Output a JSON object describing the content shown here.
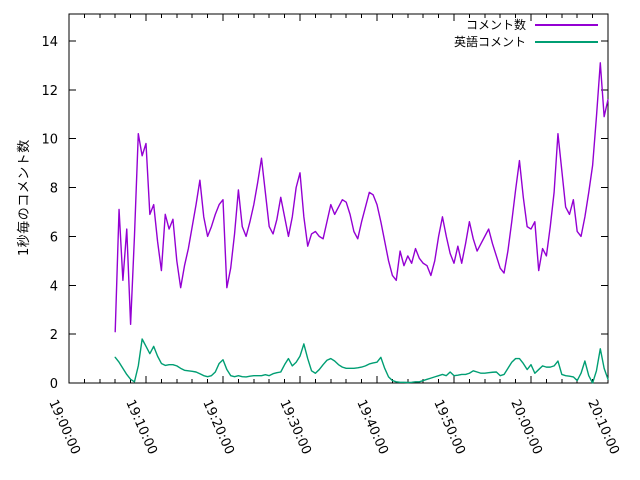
{
  "chart_data": {
    "type": "line",
    "title": "",
    "xlabel": "",
    "ylabel": "1秒毎のコメント数",
    "grid": false,
    "background": "#ffffff",
    "axis_color": "#000000",
    "text_color": "#000000",
    "x_axis": {
      "tick_labels": [
        "19:00:00",
        "19:10:00",
        "19:20:00",
        "19:30:00",
        "19:40:00",
        "19:50:00",
        "20:00:00",
        "20:10:00"
      ],
      "range_minutes": [
        0,
        70
      ],
      "major_tick_every_minutes": 10,
      "minor_tick_every_minutes": 2,
      "tick_label_rotation_deg": 66
    },
    "y_axis": {
      "ticks": [
        0,
        2,
        4,
        6,
        8,
        10,
        12,
        14
      ],
      "range": [
        0,
        15.1
      ]
    },
    "legend": {
      "position": "top-right-inside",
      "entries": [
        {
          "label": "コメント数",
          "color": "#9400d3"
        },
        {
          "label": "英語コメント",
          "color": "#009e73"
        }
      ]
    },
    "series": [
      {
        "name": "コメント数",
        "color": "#9400d3",
        "x_start_minutes_after_1900": 6.0,
        "x_step_minutes": 0.5,
        "values": [
          2.1,
          7.1,
          4.2,
          6.3,
          2.4,
          6.0,
          10.2,
          9.3,
          9.8,
          6.9,
          7.3,
          5.8,
          4.6,
          6.9,
          6.3,
          6.7,
          5.0,
          3.9,
          4.8,
          5.5,
          6.4,
          7.3,
          8.3,
          6.8,
          6.0,
          6.4,
          6.9,
          7.3,
          7.5,
          3.9,
          4.7,
          6.1,
          7.9,
          6.4,
          6.0,
          6.6,
          7.3,
          8.2,
          9.2,
          7.8,
          6.4,
          6.1,
          6.7,
          7.6,
          6.8,
          6.0,
          6.8,
          8.0,
          8.6,
          6.8,
          5.6,
          6.1,
          6.2,
          6.0,
          5.9,
          6.6,
          7.3,
          6.9,
          7.2,
          7.5,
          7.4,
          6.9,
          6.2,
          5.9,
          6.6,
          7.2,
          7.8,
          7.7,
          7.3,
          6.6,
          5.8,
          5.0,
          4.4,
          4.2,
          5.4,
          4.8,
          5.2,
          4.9,
          5.5,
          5.1,
          4.9,
          4.8,
          4.4,
          5.0,
          6.0,
          6.8,
          6.0,
          5.3,
          4.9,
          5.6,
          4.9,
          5.7,
          6.6,
          5.9,
          5.4,
          5.7,
          6.0,
          6.3,
          5.7,
          5.2,
          4.7,
          4.5,
          5.4,
          6.6,
          7.9,
          9.1,
          7.6,
          6.4,
          6.3,
          6.6,
          4.6,
          5.5,
          5.2,
          6.4,
          7.8,
          10.2,
          8.7,
          7.2,
          6.9,
          7.5,
          6.2,
          6.0,
          6.8,
          7.8,
          8.9,
          10.9,
          13.1,
          10.9,
          11.6
        ]
      },
      {
        "name": "英語コメント",
        "color": "#009e73",
        "x_start_minutes_after_1900": 6.0,
        "x_step_minutes": 0.5,
        "values": [
          1.05,
          0.85,
          0.6,
          0.35,
          0.15,
          0.05,
          0.7,
          1.8,
          1.5,
          1.2,
          1.5,
          1.1,
          0.8,
          0.72,
          0.75,
          0.75,
          0.7,
          0.6,
          0.52,
          0.5,
          0.48,
          0.45,
          0.38,
          0.3,
          0.26,
          0.3,
          0.45,
          0.8,
          0.95,
          0.55,
          0.3,
          0.26,
          0.3,
          0.26,
          0.25,
          0.28,
          0.3,
          0.3,
          0.3,
          0.34,
          0.3,
          0.38,
          0.42,
          0.45,
          0.75,
          1.0,
          0.7,
          0.85,
          1.1,
          1.6,
          1.0,
          0.5,
          0.4,
          0.55,
          0.75,
          0.93,
          1.0,
          0.9,
          0.75,
          0.65,
          0.6,
          0.6,
          0.6,
          0.62,
          0.65,
          0.7,
          0.78,
          0.82,
          0.85,
          1.05,
          0.6,
          0.25,
          0.1,
          0.05,
          0.03,
          0.03,
          0.02,
          0.03,
          0.05,
          0.05,
          0.1,
          0.15,
          0.2,
          0.25,
          0.3,
          0.35,
          0.3,
          0.45,
          0.3,
          0.32,
          0.35,
          0.35,
          0.4,
          0.5,
          0.45,
          0.4,
          0.4,
          0.42,
          0.44,
          0.45,
          0.3,
          0.35,
          0.6,
          0.85,
          1.0,
          1.0,
          0.8,
          0.55,
          0.75,
          0.4,
          0.55,
          0.7,
          0.65,
          0.65,
          0.7,
          0.9,
          0.35,
          0.3,
          0.28,
          0.25,
          0.1,
          0.4,
          0.9,
          0.3,
          0.0,
          0.5,
          1.4,
          0.6,
          0.15
        ]
      }
    ]
  }
}
